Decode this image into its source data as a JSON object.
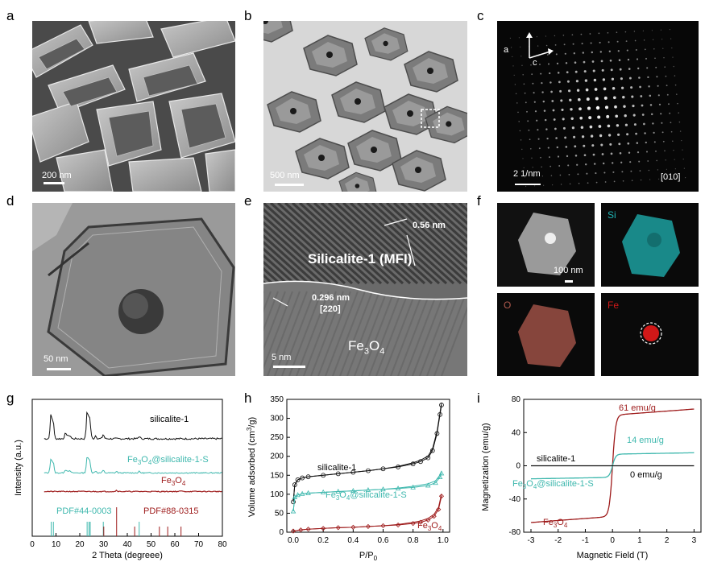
{
  "panel_labels": [
    "a",
    "b",
    "c",
    "d",
    "e",
    "f",
    "g",
    "h",
    "i"
  ],
  "panel_a": {
    "scale": "200 nm"
  },
  "panel_b": {
    "scale": "500 nm"
  },
  "panel_c": {
    "scale": "2 1/nm",
    "zone": "[010]",
    "axis1": "a",
    "axis2": "c"
  },
  "panel_d": {
    "scale": "50 nm"
  },
  "panel_e": {
    "scale": "5 nm",
    "d1": "0.56 nm",
    "region1": "Silicalite-1 (MFI)",
    "d2": "0.296 nm",
    "plane": "[220]",
    "region2_main": "Fe",
    "region2_sub": "3",
    "region2_main2": "O",
    "region2_sub2": "4"
  },
  "panel_f": {
    "scale": "100 nm",
    "el1": "Si",
    "el2": "O",
    "el3": "Fe",
    "colors": {
      "Si": "#1fb4b4",
      "O": "#b05a4e",
      "Fe": "#d01818"
    }
  },
  "chart_data": [
    {
      "type": "line",
      "panel": "g",
      "xlabel": "2 Theta (degreee)",
      "ylabel": "Intensity (a.u.)",
      "xlim": [
        0,
        80
      ],
      "xticks": [
        "0",
        "10",
        "20",
        "30",
        "40",
        "50",
        "60",
        "70",
        "80"
      ],
      "series": [
        {
          "name": "silicalite-1",
          "color": "#111111"
        },
        {
          "name": "Fe3O4@silicalite-1-S",
          "color": "#3fb8ae"
        },
        {
          "name": "Fe3O4",
          "color": "#9e1b1b"
        },
        {
          "name": "PDF#44-0003",
          "color": "#3fb8ae",
          "sticks": [
            8.0,
            8.9,
            23.1,
            23.9,
            24.4,
            29.9,
            45.0
          ]
        },
        {
          "name": "PDF#88-0315",
          "color": "#9e1b1b",
          "sticks": [
            30.1,
            35.5,
            43.1,
            53.5,
            57.0,
            62.6
          ]
        }
      ],
      "labels": {
        "s1": "silicalite-1",
        "s2a": "Fe",
        "s2b": "3",
        "s2c": "O",
        "s2d": "4",
        "s2e": "@silicalite-1-S",
        "s3a": "Fe",
        "s3b": "3",
        "s3c": "O",
        "s3d": "4",
        "p1": "PDF#44-0003",
        "p2": "PDF#88-0315"
      }
    },
    {
      "type": "line",
      "panel": "h",
      "xlabel": "P/P",
      "xlabel_sub": "0",
      "ylabel": "Volume adsorbed (cm",
      "ylabel_sup": "3",
      "ylabel_end": "/g)",
      "xlim": [
        0,
        1.0
      ],
      "ylim": [
        0,
        350
      ],
      "xticks": [
        "0.0",
        "0.2",
        "0.4",
        "0.6",
        "0.8",
        "1.0"
      ],
      "yticks": [
        "0",
        "50",
        "100",
        "150",
        "200",
        "250",
        "300",
        "350"
      ],
      "series": [
        {
          "name": "silicalite-1",
          "color": "#111111",
          "x": [
            0.0,
            0.01,
            0.03,
            0.06,
            0.1,
            0.2,
            0.3,
            0.4,
            0.5,
            0.6,
            0.7,
            0.8,
            0.85,
            0.9,
            0.93,
            0.96,
            0.98,
            0.99
          ],
          "y": [
            80,
            125,
            138,
            143,
            146,
            150,
            154,
            158,
            162,
            167,
            172,
            180,
            186,
            196,
            215,
            260,
            310,
            335
          ]
        },
        {
          "name": "Fe3O4@silicalite-1-S",
          "color": "#3fb8ae",
          "x": [
            0.0,
            0.01,
            0.03,
            0.06,
            0.1,
            0.2,
            0.3,
            0.4,
            0.5,
            0.6,
            0.7,
            0.8,
            0.9,
            0.95,
            0.98,
            0.99
          ],
          "y": [
            55,
            92,
            98,
            101,
            103,
            105,
            107,
            109,
            111,
            113,
            115,
            118,
            123,
            130,
            145,
            155
          ]
        },
        {
          "name": "Fe3O4",
          "color": "#9e1b1b",
          "x": [
            0.0,
            0.05,
            0.1,
            0.2,
            0.3,
            0.4,
            0.5,
            0.6,
            0.7,
            0.8,
            0.85,
            0.9,
            0.94,
            0.97,
            0.99
          ],
          "y": [
            3,
            6,
            8,
            10,
            12,
            13,
            15,
            17,
            19,
            23,
            26,
            32,
            42,
            60,
            95
          ]
        }
      ],
      "labels": {
        "s1": "silicalite-1",
        "s2a": "Fe",
        "s2b": "3",
        "s2c": "O",
        "s2d": "4",
        "s2e": "@silicalite-1-S",
        "s3a": "Fe",
        "s3b": "3",
        "s3c": "O",
        "s3d": "4"
      }
    },
    {
      "type": "line",
      "panel": "i",
      "xlabel": "Magnetic Field (T)",
      "ylabel": "Magnetization (emu/g)",
      "xlim": [
        -3,
        3
      ],
      "ylim": [
        -80,
        80
      ],
      "xticks": [
        "-3",
        "-2",
        "-1",
        "0",
        "1",
        "2",
        "3"
      ],
      "yticks": [
        "-80",
        "-40",
        "0",
        "40",
        "80"
      ],
      "series": [
        {
          "name": "Fe3O4",
          "color": "#9e1b1b",
          "ms": 61,
          "width": 0.12
        },
        {
          "name": "Fe3O4@silicalite-1-S",
          "color": "#3fb8ae",
          "ms": 14,
          "width": 0.12
        },
        {
          "name": "silicalite-1",
          "color": "#111111",
          "ms": 0,
          "width": 0.12
        }
      ],
      "labels": {
        "v1": "61 emu/g",
        "v2": "14 emu/g",
        "v3": "0 emu/g",
        "s1": "silicalite-1",
        "s2a": "Fe",
        "s2b": "3",
        "s2c": "O",
        "s2d": "4",
        "s2e": "@silicalite-1-S",
        "s3a": "Fe",
        "s3b": "3",
        "s3c": "O",
        "s3d": "4"
      }
    }
  ]
}
